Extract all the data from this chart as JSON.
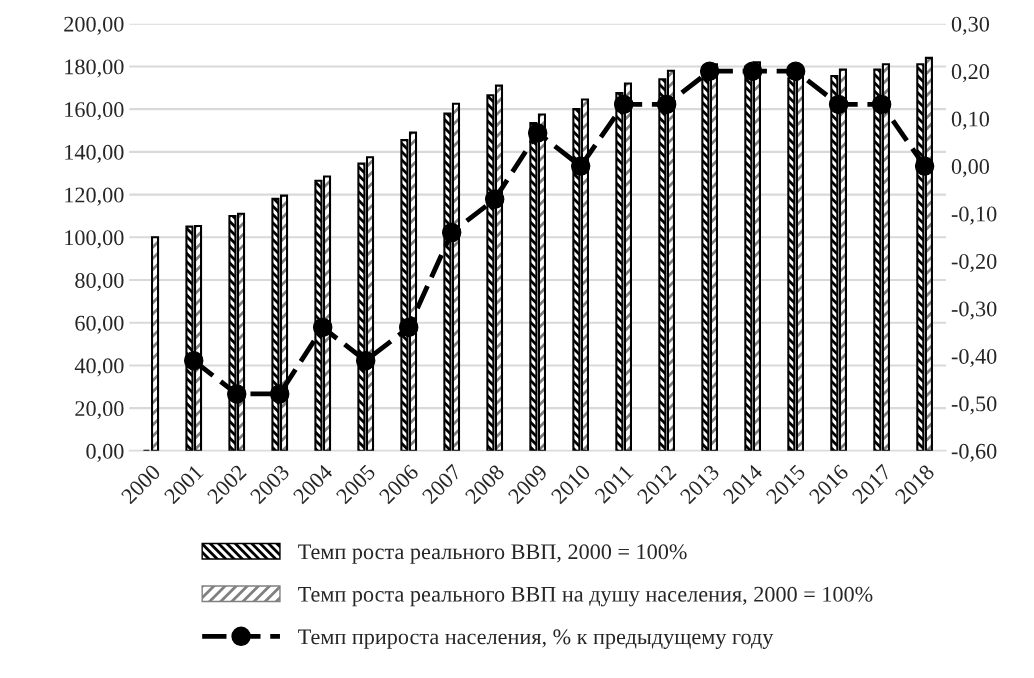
{
  "chart_data": {
    "type": "bar",
    "categories": [
      "2000",
      "2001",
      "2002",
      "2003",
      "2004",
      "2005",
      "2006",
      "2007",
      "2008",
      "2009",
      "2010",
      "2011",
      "2012",
      "2013",
      "2014",
      "2015",
      "2016",
      "2017",
      "2018"
    ],
    "series": [
      {
        "name": "Темп роста реального ВВП, 2000 = 100%",
        "color": "#000000",
        "values": [
          null,
          105,
          110,
          118,
          126.5,
          134.5,
          145.5,
          158,
          166.5,
          153.5,
          160,
          167.5,
          174,
          177.5,
          180,
          174.5,
          175.5,
          178.5,
          181
        ]
      },
      {
        "name": "Темп роста реального ВВП на душу населения, 2000 = 100%",
        "color": "#808080",
        "values": [
          100,
          105.3,
          111,
          119.5,
          128.5,
          137.5,
          149,
          162.5,
          171,
          157.5,
          164.5,
          172,
          178,
          181,
          182,
          178.5,
          178.5,
          181,
          184
        ]
      },
      {
        "name": "Темп прироста населения, % к предыдущему году",
        "type": "line",
        "axis": "y2",
        "color": "#000000",
        "marker": "circle",
        "line_style": "dashed",
        "values": [
          null,
          -0.41,
          -0.48,
          -0.48,
          -0.34,
          -0.41,
          -0.34,
          -0.14,
          -0.07,
          0.07,
          0.0,
          0.13,
          0.13,
          0.2,
          0.2,
          0.2,
          0.13,
          0.13,
          0.0
        ]
      }
    ],
    "ylim": [
      0,
      200
    ],
    "yticks": [
      {
        "value": 0,
        "label": "0,00"
      },
      {
        "value": 20,
        "label": "20,00"
      },
      {
        "value": 40,
        "label": "40,00"
      },
      {
        "value": 60,
        "label": "60,00"
      },
      {
        "value": 80,
        "label": "80,00"
      },
      {
        "value": 100,
        "label": "100,00"
      },
      {
        "value": 120,
        "label": "120,00"
      },
      {
        "value": 140,
        "label": "140,00"
      },
      {
        "value": 160,
        "label": "160,00"
      },
      {
        "value": 180,
        "label": "180,00"
      },
      {
        "value": 200,
        "label": "200,00"
      }
    ],
    "y2lim": [
      -0.6,
      0.3
    ],
    "y2ticks": [
      {
        "value": -0.6,
        "label": "-0,60"
      },
      {
        "value": -0.5,
        "label": "-0,50"
      },
      {
        "value": -0.4,
        "label": "-0,40"
      },
      {
        "value": -0.3,
        "label": "-0,30"
      },
      {
        "value": -0.2,
        "label": "-0,20"
      },
      {
        "value": -0.1,
        "label": "-0,10"
      },
      {
        "value": 0,
        "label": "0,00"
      },
      {
        "value": 0.1,
        "label": "0,10"
      },
      {
        "value": 0.2,
        "label": "0,20"
      },
      {
        "value": 0.3,
        "label": "0,30"
      }
    ],
    "grid": "y",
    "legend": "bottom"
  }
}
